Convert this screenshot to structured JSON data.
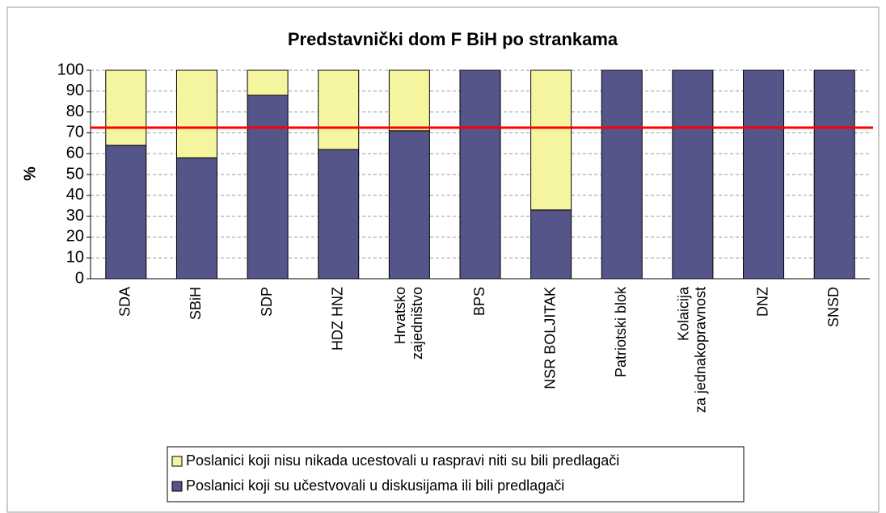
{
  "chart_data": {
    "type": "stacked_bar",
    "title": "Predstavnički dom F BiH po strankama",
    "ylabel": "%",
    "categories": [
      "SDA",
      "SBiH",
      "SDP",
      "HDZ HNZ",
      "Hrvatsko zajedništvo",
      "BPS",
      "NSR BOLJITAK",
      "Patriotski blok",
      "Kolaicija za jednakopravnost",
      "DNZ",
      "SNSD"
    ],
    "series": [
      {
        "name": "Poslanici koji su učestvovali u diskusijama ili bili predlagači",
        "color": "#55558a",
        "values": [
          64,
          58,
          88,
          62,
          71,
          100,
          33,
          100,
          100,
          100,
          100
        ]
      },
      {
        "name": "Poslanici koji nisu nikada ucestovali u raspravi niti su bili predlagači",
        "color": "#f5f5a0",
        "values": [
          36,
          42,
          12,
          38,
          29,
          0,
          67,
          0,
          0,
          0,
          0
        ]
      }
    ],
    "reference_line": 72.5,
    "reference_color": "#ff0000",
    "ylim": [
      0,
      100
    ],
    "yticks": [
      0,
      10,
      20,
      30,
      40,
      50,
      60,
      70,
      80,
      90,
      100
    ],
    "grid": true
  }
}
